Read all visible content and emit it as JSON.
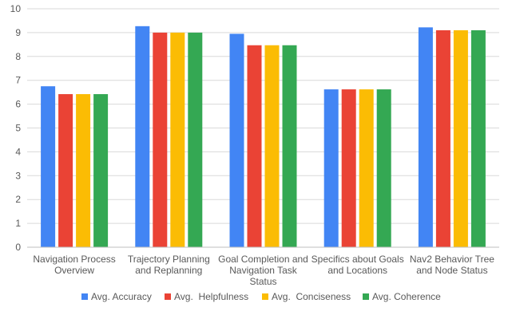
{
  "chart_data": {
    "type": "bar",
    "title": "",
    "xlabel": "",
    "ylabel": "",
    "ylim": [
      0,
      10
    ],
    "yticks": [
      0,
      1,
      2,
      3,
      4,
      5,
      6,
      7,
      8,
      9,
      10
    ],
    "grid": true,
    "legend_position": "bottom",
    "categories": [
      [
        "Navigation Process",
        "Overview"
      ],
      [
        "Trajectory Planning",
        "and Replanning"
      ],
      [
        "Goal Completion and",
        "Navigation Task",
        "Status"
      ],
      [
        "Specifics about Goals",
        "and Locations"
      ],
      [
        "Nav2 Behavior Tree",
        "and Node Status"
      ]
    ],
    "series": [
      {
        "name": "Avg. Accuracy",
        "color": "#4285F4",
        "values": [
          6.75,
          9.27,
          8.95,
          6.62,
          9.22
        ]
      },
      {
        "name": "Avg.  Helpfulness",
        "color": "#EA4335",
        "values": [
          6.42,
          9.0,
          8.47,
          6.62,
          9.1
        ]
      },
      {
        "name": "Avg.  Conciseness",
        "color": "#FBBC04",
        "values": [
          6.42,
          9.0,
          8.47,
          6.62,
          9.1
        ]
      },
      {
        "name": "Avg. Coherence",
        "color": "#34A853",
        "values": [
          6.42,
          9.0,
          8.47,
          6.62,
          9.1
        ]
      }
    ]
  }
}
